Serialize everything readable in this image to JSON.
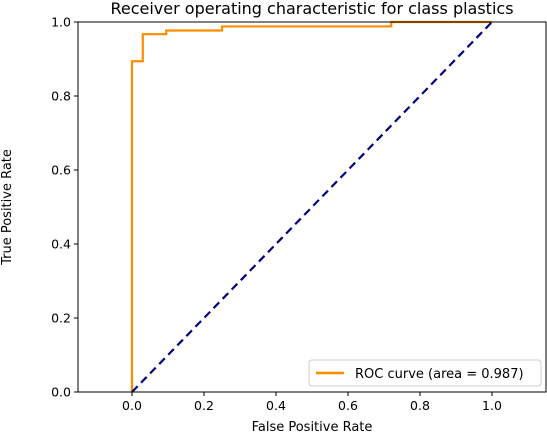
{
  "chart_data": {
    "type": "line",
    "title": "Receiver operating characteristic for class plastics",
    "xlabel": "False Positive Rate",
    "ylabel": "True Positive Rate",
    "xlim": [
      -0.15,
      1.15
    ],
    "ylim": [
      0.0,
      1.0
    ],
    "x_ticks": [
      0.0,
      0.2,
      0.4,
      0.6,
      0.8,
      1.0
    ],
    "x_tick_labels": [
      "0.0",
      "0.2",
      "0.4",
      "0.6",
      "0.8",
      "1.0"
    ],
    "y_ticks": [
      0.0,
      0.2,
      0.4,
      0.6,
      0.8,
      1.0
    ],
    "y_tick_labels": [
      "0.0",
      "0.2",
      "0.4",
      "0.6",
      "0.8",
      "1.0"
    ],
    "grid": false,
    "legend_position": "lower-right",
    "series": [
      {
        "name": "ROC curve (area = 0.987)",
        "color": "#ff8c00",
        "style": "solid",
        "x": [
          0.0,
          0.0,
          0.03,
          0.03,
          0.095,
          0.095,
          0.25,
          0.25,
          0.72,
          0.72,
          1.0
        ],
        "y": [
          0.0,
          0.894,
          0.894,
          0.967,
          0.967,
          0.977,
          0.977,
          0.988,
          0.988,
          1.0,
          1.0
        ]
      },
      {
        "color": "#000080",
        "style": "dashed",
        "x": [
          0.0,
          1.0
        ],
        "y": [
          0.0,
          1.0
        ]
      }
    ]
  }
}
